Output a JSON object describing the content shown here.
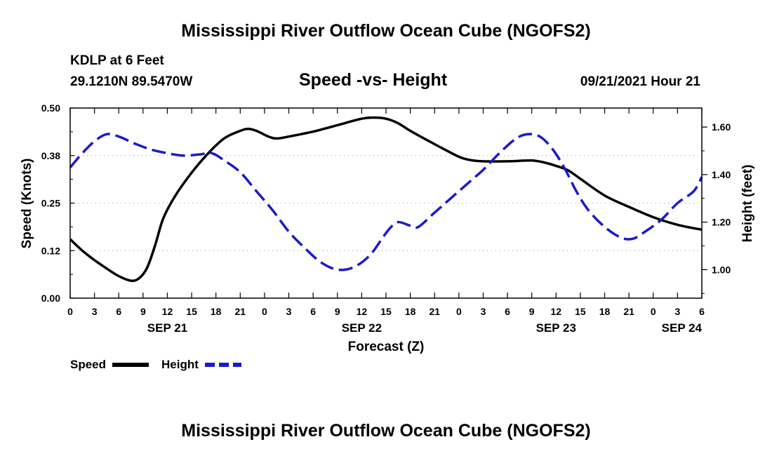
{
  "header": {
    "title": "Mississippi River Outflow Ocean Cube (NGOFS2)",
    "station": "KDLP at 6 Feet",
    "coords": "29.1210N  89.5470W",
    "subtitle": "Speed -vs- Height",
    "datetime": "09/21/2021 Hour 21"
  },
  "footer": {
    "title": "Mississippi River Outflow Ocean Cube (NGOFS2)"
  },
  "chart_data": {
    "type": "line",
    "xlabel": "Forecast (Z)",
    "ylabel_left": "Speed (Knots)",
    "ylabel_right": "Height (feet)",
    "x_range": [
      0,
      78
    ],
    "x_unit": "hours since SEP 21 00Z",
    "x_ticks": [
      {
        "x": 0,
        "label": "0"
      },
      {
        "x": 3,
        "label": "3"
      },
      {
        "x": 6,
        "label": "6"
      },
      {
        "x": 9,
        "label": "9"
      },
      {
        "x": 12,
        "label": "12"
      },
      {
        "x": 15,
        "label": "15"
      },
      {
        "x": 18,
        "label": "18"
      },
      {
        "x": 21,
        "label": "21"
      },
      {
        "x": 24,
        "label": "0"
      },
      {
        "x": 27,
        "label": "3"
      },
      {
        "x": 30,
        "label": "6"
      },
      {
        "x": 33,
        "label": "9"
      },
      {
        "x": 36,
        "label": "12"
      },
      {
        "x": 39,
        "label": "15"
      },
      {
        "x": 42,
        "label": "18"
      },
      {
        "x": 45,
        "label": "21"
      },
      {
        "x": 48,
        "label": "0"
      },
      {
        "x": 51,
        "label": "3"
      },
      {
        "x": 54,
        "label": "6"
      },
      {
        "x": 57,
        "label": "9"
      },
      {
        "x": 60,
        "label": "12"
      },
      {
        "x": 63,
        "label": "15"
      },
      {
        "x": 66,
        "label": "18"
      },
      {
        "x": 69,
        "label": "21"
      },
      {
        "x": 72,
        "label": "0"
      },
      {
        "x": 75,
        "label": "3"
      },
      {
        "x": 78,
        "label": "6"
      }
    ],
    "date_labels": [
      {
        "x": 12,
        "label": "SEP 21"
      },
      {
        "x": 36,
        "label": "SEP 22"
      },
      {
        "x": 60,
        "label": "SEP 23"
      },
      {
        "x": 84,
        "label": "SEP 24"
      }
    ],
    "y_left_range": [
      0,
      0.5
    ],
    "y_left_ticks": [
      {
        "v": 0.0,
        "label": "0.00"
      },
      {
        "v": 0.125,
        "label": "0.12"
      },
      {
        "v": 0.25,
        "label": "0.25"
      },
      {
        "v": 0.375,
        "label": "0.38"
      },
      {
        "v": 0.5,
        "label": "0.50"
      }
    ],
    "y_right_range": [
      0.88,
      1.68
    ],
    "y_right_ticks": [
      {
        "v": 1.0,
        "label": "1.00"
      },
      {
        "v": 1.2,
        "label": "1.20"
      },
      {
        "v": 1.4,
        "label": "1.40"
      },
      {
        "v": 1.6,
        "label": "1.60"
      }
    ],
    "series": [
      {
        "name": "Speed",
        "axis": "left",
        "color": "#000000",
        "dash": "solid",
        "points": [
          [
            0,
            0.155
          ],
          [
            1.5,
            0.125
          ],
          [
            3,
            0.1
          ],
          [
            4.5,
            0.078
          ],
          [
            6,
            0.058
          ],
          [
            7.5,
            0.046
          ],
          [
            8.5,
            0.052
          ],
          [
            9.5,
            0.08
          ],
          [
            10.5,
            0.14
          ],
          [
            11.5,
            0.21
          ],
          [
            13,
            0.27
          ],
          [
            15,
            0.33
          ],
          [
            17,
            0.38
          ],
          [
            19,
            0.42
          ],
          [
            21,
            0.44
          ],
          [
            22,
            0.445
          ],
          [
            23,
            0.44
          ],
          [
            24.5,
            0.425
          ],
          [
            25.5,
            0.42
          ],
          [
            27,
            0.425
          ],
          [
            30,
            0.438
          ],
          [
            33,
            0.455
          ],
          [
            36,
            0.472
          ],
          [
            37.5,
            0.475
          ],
          [
            39,
            0.472
          ],
          [
            40.5,
            0.46
          ],
          [
            42,
            0.44
          ],
          [
            45,
            0.405
          ],
          [
            48,
            0.372
          ],
          [
            49.5,
            0.363
          ],
          [
            51,
            0.36
          ],
          [
            54,
            0.36
          ],
          [
            57,
            0.362
          ],
          [
            58.5,
            0.357
          ],
          [
            60,
            0.348
          ],
          [
            61.5,
            0.336
          ],
          [
            63,
            0.314
          ],
          [
            66,
            0.27
          ],
          [
            69,
            0.24
          ],
          [
            72,
            0.213
          ],
          [
            75,
            0.193
          ],
          [
            78,
            0.18
          ]
        ]
      },
      {
        "name": "Height",
        "axis": "right",
        "color": "#1a1acc",
        "dash": "dashed",
        "points": [
          [
            0,
            1.43
          ],
          [
            1.5,
            1.49
          ],
          [
            3,
            1.54
          ],
          [
            4.5,
            1.57
          ],
          [
            6,
            1.56
          ],
          [
            8,
            1.53
          ],
          [
            10,
            1.505
          ],
          [
            12,
            1.49
          ],
          [
            14,
            1.48
          ],
          [
            16,
            1.485
          ],
          [
            17.5,
            1.49
          ],
          [
            19,
            1.46
          ],
          [
            21,
            1.41
          ],
          [
            23,
            1.33
          ],
          [
            25,
            1.25
          ],
          [
            27,
            1.16
          ],
          [
            29,
            1.09
          ],
          [
            31,
            1.03
          ],
          [
            33,
            1.0
          ],
          [
            35,
            1.01
          ],
          [
            37,
            1.06
          ],
          [
            38.5,
            1.13
          ],
          [
            39.5,
            1.175
          ],
          [
            40.5,
            1.2
          ],
          [
            42,
            1.185
          ],
          [
            43,
            1.18
          ],
          [
            45,
            1.24
          ],
          [
            47,
            1.3
          ],
          [
            49,
            1.36
          ],
          [
            51,
            1.42
          ],
          [
            53,
            1.49
          ],
          [
            55,
            1.55
          ],
          [
            56.5,
            1.57
          ],
          [
            58,
            1.56
          ],
          [
            59.5,
            1.51
          ],
          [
            61,
            1.43
          ],
          [
            62.5,
            1.33
          ],
          [
            64,
            1.25
          ],
          [
            66,
            1.18
          ],
          [
            68,
            1.135
          ],
          [
            69.5,
            1.13
          ],
          [
            71,
            1.16
          ],
          [
            73,
            1.21
          ],
          [
            75,
            1.28
          ],
          [
            77,
            1.33
          ],
          [
            78,
            1.39
          ]
        ]
      }
    ],
    "legend": [
      {
        "name": "Speed",
        "color": "#000000",
        "dash": "solid"
      },
      {
        "name": "Height",
        "color": "#1a1acc",
        "dash": "dashed"
      }
    ]
  }
}
